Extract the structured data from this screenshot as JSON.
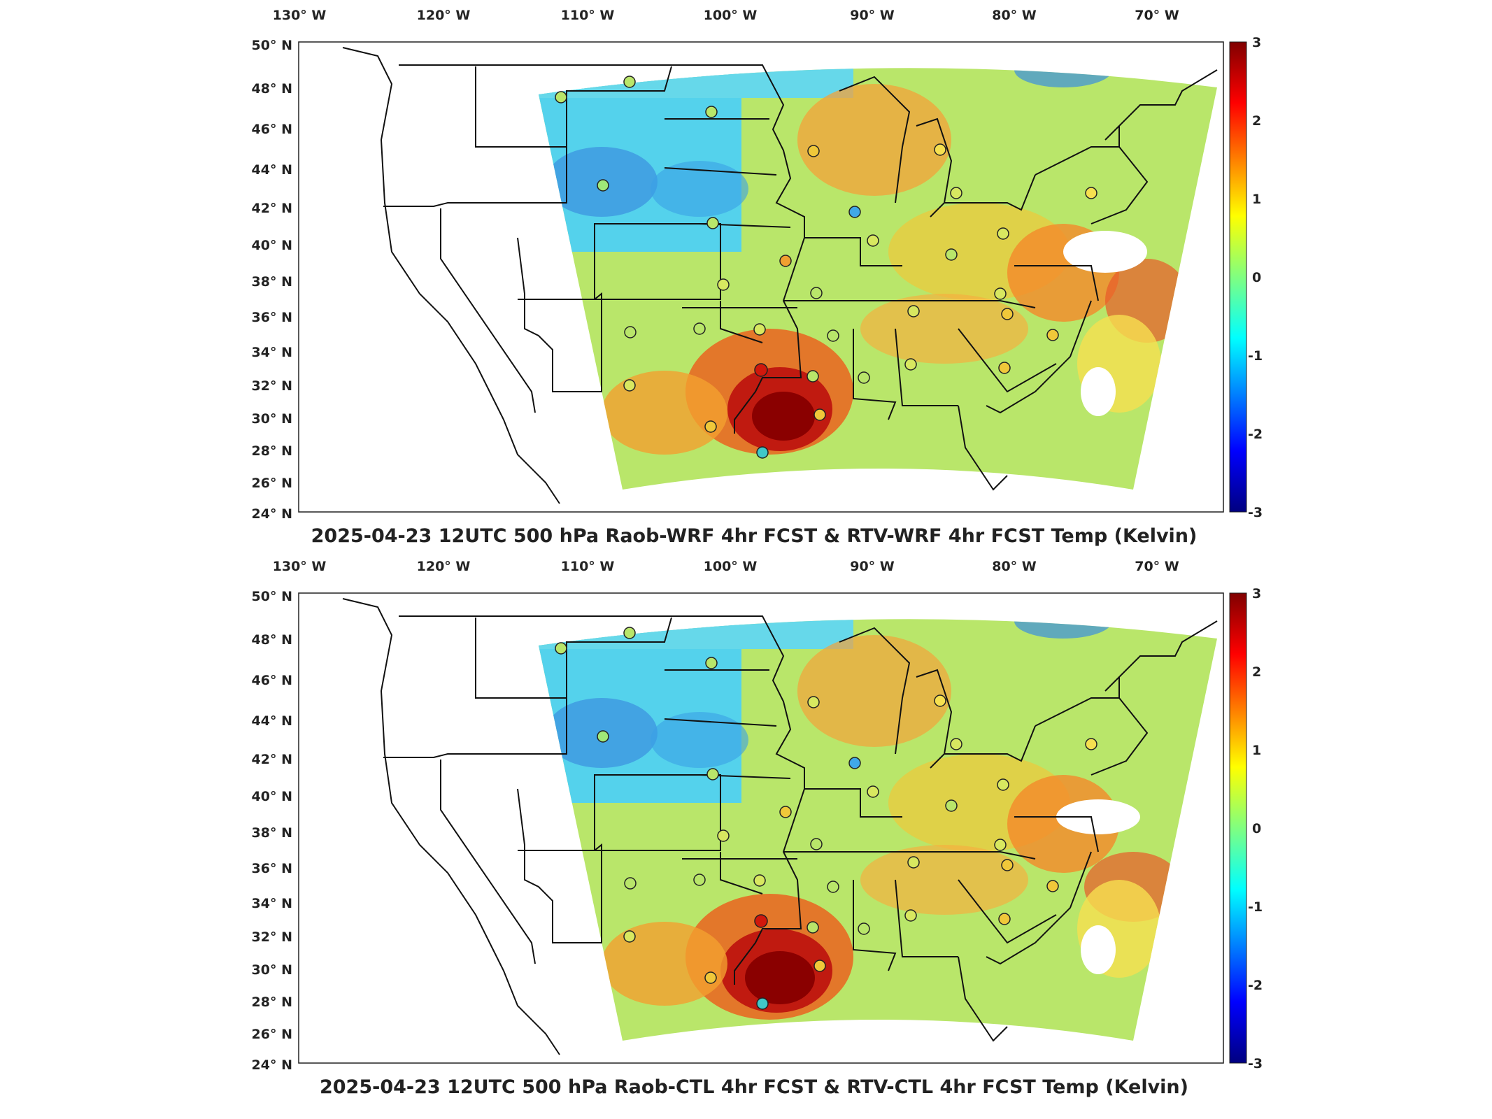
{
  "panels": [
    {
      "title": "2025-04-23 12UTC 500 hPa Raob-WRF 4hr FCST & RTV-WRF 4hr FCST Temp (Kelvin)",
      "lon_labels": [
        "130° W",
        "120° W",
        "110° W",
        "100° W",
        "90° W",
        "80° W",
        "70° W"
      ],
      "lat_labels": [
        "50° N",
        "48° N",
        "46° N",
        "44° N",
        "42° N",
        "40° N",
        "38° N",
        "36° N",
        "34° N",
        "32° N",
        "30° N",
        "28° N",
        "26° N",
        "24° N"
      ],
      "colorbar_ticks": [
        "3",
        "2",
        "1",
        "0",
        "-1",
        "-2",
        "-3"
      ]
    },
    {
      "title": "2025-04-23 12UTC 500 hPa Raob-CTL 4hr FCST & RTV-CTL 4hr FCST Temp (Kelvin)",
      "lon_labels": [
        "130° W",
        "120° W",
        "110° W",
        "100° W",
        "90° W",
        "80° W",
        "70° W"
      ],
      "lat_labels": [
        "50° N",
        "48° N",
        "46° N",
        "44° N",
        "42° N",
        "40° N",
        "38° N",
        "36° N",
        "34° N",
        "32° N",
        "30° N",
        "28° N",
        "26° N",
        "24° N"
      ],
      "colorbar_ticks": [
        "3",
        "2",
        "1",
        "0",
        "-1",
        "-2",
        "-3"
      ]
    }
  ],
  "legend": {
    "colorbar_range": [
      -3,
      3
    ],
    "colormap": "jet",
    "units": "Kelvin"
  },
  "colors": {
    "hot": "#a80000",
    "warm": "#f08a1c",
    "neutral": "#c8e870",
    "cool": "#40c8e8",
    "cold": "#2050d8"
  }
}
